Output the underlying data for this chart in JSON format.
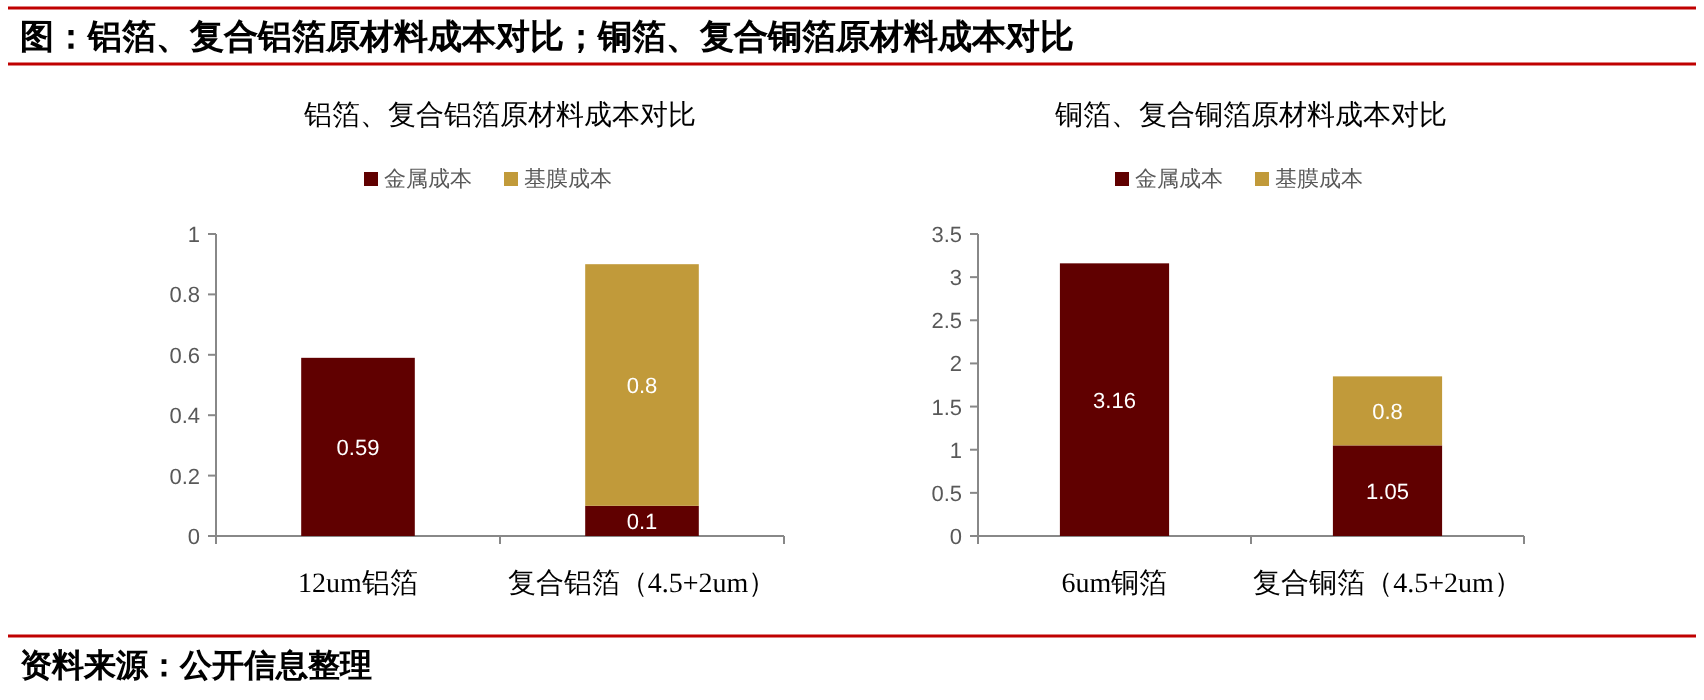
{
  "chart_data": [
    {
      "type": "other",
      "title": "图：铝箔、复合铝箔原材料成本对比；铜箔、复合铜箔原材料成本对比",
      "annotations": [
        "资料来源：公开信息整理"
      ]
    },
    {
      "type": "bar",
      "title": "铝箔、复合铝箔原材料成本对比",
      "categories": [
        "12um铝箔",
        "复合铝箔（4.5+2um）"
      ],
      "stacked": true,
      "data_labels": true,
      "legend": "top",
      "ylim": [
        0,
        1
      ],
      "yticks": [
        0,
        0.2,
        0.4,
        0.6,
        0.8,
        1
      ],
      "series": [
        {
          "name": "金属成本",
          "color": "#600000",
          "values": [
            0.59,
            0.1
          ]
        },
        {
          "name": "基膜成本",
          "color": "#c19a3a",
          "values": [
            null,
            0.8
          ]
        }
      ]
    },
    {
      "type": "bar",
      "title": "铜箔、复合铜箔原材料成本对比",
      "categories": [
        "6um铜箔",
        "复合铜箔（4.5+2um）"
      ],
      "stacked": true,
      "data_labels": true,
      "legend": "top",
      "ylim": [
        0,
        3.5
      ],
      "yticks": [
        0,
        0.5,
        1,
        1.5,
        2,
        2.5,
        3,
        3.5
      ],
      "series": [
        {
          "name": "金属成本",
          "color": "#600000",
          "values": [
            3.16,
            1.05
          ]
        },
        {
          "name": "基膜成本",
          "color": "#c19a3a",
          "values": [
            null,
            0.8
          ]
        }
      ]
    }
  ]
}
